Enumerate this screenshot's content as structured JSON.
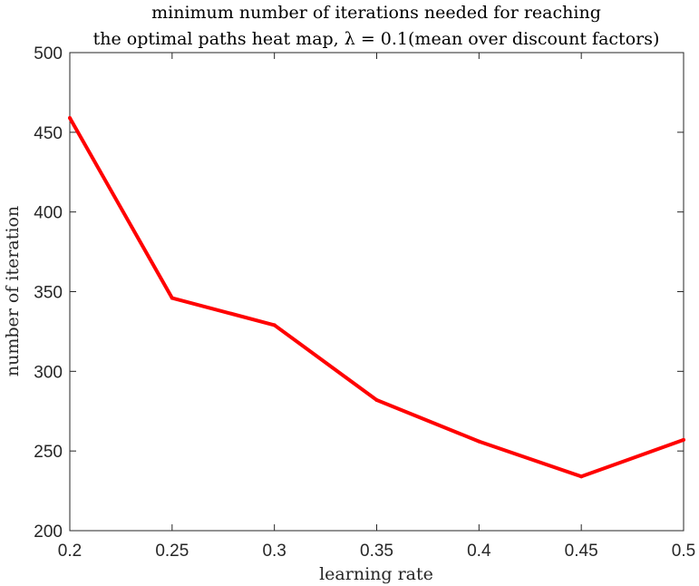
{
  "chart_data": {
    "type": "line",
    "title_lines": [
      "minimum number of iterations needed for reaching",
      "the optimal paths heat map, λ = 0.1(mean over discount factors)"
    ],
    "xlabel": "learning rate",
    "ylabel": "number of iteration",
    "xlim": [
      0.2,
      0.5
    ],
    "ylim": [
      200,
      500
    ],
    "xticks": [
      "0.2",
      "0.25",
      "0.3",
      "0.35",
      "0.4",
      "0.45",
      "0.5"
    ],
    "yticks": [
      "200",
      "250",
      "300",
      "350",
      "400",
      "450",
      "500"
    ],
    "grid": false,
    "series": [
      {
        "color": "#ff0000",
        "x": [
          0.2,
          0.25,
          0.3,
          0.35,
          0.4,
          0.45,
          0.5
        ],
        "y": [
          459,
          346,
          329,
          282,
          256,
          234,
          257
        ]
      }
    ]
  }
}
